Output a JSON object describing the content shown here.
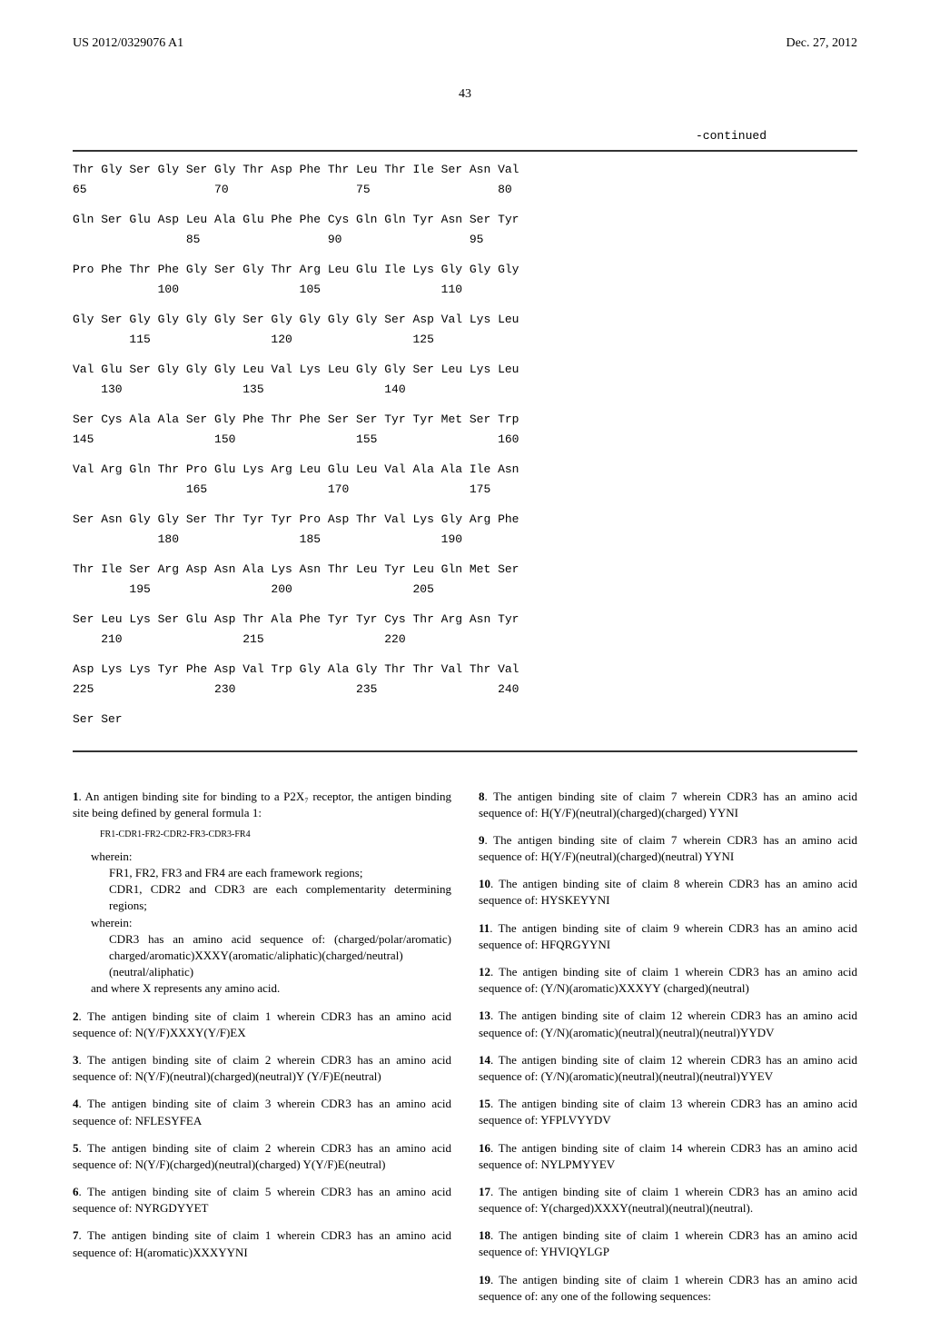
{
  "header": {
    "patent_number": "US 2012/0329076 A1",
    "date": "Dec. 27, 2012"
  },
  "page_number": "43",
  "continued_label": "-continued",
  "sequence": {
    "rows": [
      {
        "aa": "Thr Gly Ser Gly Ser Gly Thr Asp Phe Thr Leu Thr Ile Ser Asn Val",
        "nums": "65                  70                  75                  80"
      },
      {
        "aa": "Gln Ser Glu Asp Leu Ala Glu Phe Phe Cys Gln Gln Tyr Asn Ser Tyr",
        "nums": "                85                  90                  95"
      },
      {
        "aa": "Pro Phe Thr Phe Gly Ser Gly Thr Arg Leu Glu Ile Lys Gly Gly Gly",
        "nums": "            100                 105                 110"
      },
      {
        "aa": "Gly Ser Gly Gly Gly Gly Ser Gly Gly Gly Gly Ser Asp Val Lys Leu",
        "nums": "        115                 120                 125"
      },
      {
        "aa": "Val Glu Ser Gly Gly Gly Leu Val Lys Leu Gly Gly Ser Leu Lys Leu",
        "nums": "    130                 135                 140"
      },
      {
        "aa": "Ser Cys Ala Ala Ser Gly Phe Thr Phe Ser Ser Tyr Tyr Met Ser Trp",
        "nums": "145                 150                 155                 160"
      },
      {
        "aa": "Val Arg Gln Thr Pro Glu Lys Arg Leu Glu Leu Val Ala Ala Ile Asn",
        "nums": "                165                 170                 175"
      },
      {
        "aa": "Ser Asn Gly Gly Ser Thr Tyr Tyr Pro Asp Thr Val Lys Gly Arg Phe",
        "nums": "            180                 185                 190"
      },
      {
        "aa": "Thr Ile Ser Arg Asp Asn Ala Lys Asn Thr Leu Tyr Leu Gln Met Ser",
        "nums": "        195                 200                 205"
      },
      {
        "aa": "Ser Leu Lys Ser Glu Asp Thr Ala Phe Tyr Tyr Cys Thr Arg Asn Tyr",
        "nums": "    210                 215                 220"
      },
      {
        "aa": "Asp Lys Lys Tyr Phe Asp Val Trp Gly Ala Gly Thr Thr Val Thr Val",
        "nums": "225                 230                 235                 240"
      },
      {
        "aa": "Ser Ser",
        "nums": ""
      }
    ]
  },
  "claims": [
    {
      "num": "1",
      "paragraphs": [
        "An antigen binding site for binding to a P2X₇ receptor, the antigen binding site being defined by general formula 1:"
      ],
      "formula": "FR1-CDR1-FR2-CDR2-FR3-CDR3-FR4",
      "sub_paragraphs": [
        {
          "indent": 1,
          "text": "wherein:"
        },
        {
          "indent": 2,
          "text": "FR1, FR2, FR3 and FR4 are each framework regions;"
        },
        {
          "indent": 2,
          "text": "CDR1, CDR2 and CDR3 are each complementarity determining regions;"
        },
        {
          "indent": 1,
          "text": "wherein:"
        },
        {
          "indent": 2,
          "text": "CDR3 has an amino acid sequence of: (charged/polar/aromatic) charged/aromatic)XXXY(aromatic/aliphatic)(charged/neutral)(neutral/aliphatic)"
        },
        {
          "indent": 1,
          "text": "and where X represents any amino acid."
        }
      ]
    },
    {
      "num": "2",
      "text": "The antigen binding site of claim 1 wherein CDR3 has an amino acid sequence of: N(Y/F)XXXY(Y/F)EX"
    },
    {
      "num": "3",
      "text": "The antigen binding site of claim 2 wherein CDR3 has an amino acid sequence of: N(Y/F)(neutral)(charged)(neutral)Y (Y/F)E(neutral)"
    },
    {
      "num": "4",
      "text": "The antigen binding site of claim 3 wherein CDR3 has an amino acid sequence of: NFLESYFEA"
    },
    {
      "num": "5",
      "text": "The antigen binding site of claim 2 wherein CDR3 has an amino acid sequence of: N(Y/F)(charged)(neutral)(charged) Y(Y/F)E(neutral)"
    },
    {
      "num": "6",
      "text": "The antigen binding site of claim 5 wherein CDR3 has an amino acid sequence of: NYRGDYYET"
    },
    {
      "num": "7",
      "text": "The antigen binding site of claim 1 wherein CDR3 has an amino acid sequence of: H(aromatic)XXXYYNI"
    },
    {
      "num": "8",
      "text": "The antigen binding site of claim 7 wherein CDR3 has an amino acid sequence of: H(Y/F)(neutral)(charged)(charged) YYNI"
    },
    {
      "num": "9",
      "text": "The antigen binding site of claim 7 wherein CDR3 has an amino acid sequence of: H(Y/F)(neutral)(charged)(neutral) YYNI"
    },
    {
      "num": "10",
      "text": "The antigen binding site of claim 8 wherein CDR3 has an amino acid sequence of: HYSKEYYNI"
    },
    {
      "num": "11",
      "text": "The antigen binding site of claim 9 wherein CDR3 has an amino acid sequence of: HFQRGYYNI"
    },
    {
      "num": "12",
      "text": "The antigen binding site of claim 1 wherein CDR3 has an amino acid sequence of: (Y/N)(aromatic)XXXYY (charged)(neutral)"
    },
    {
      "num": "13",
      "text": "The antigen binding site of claim 12 wherein CDR3 has an amino acid sequence of: (Y/N)(aromatic)(neutral)(neutral)(neutral)YYDV"
    },
    {
      "num": "14",
      "text": "The antigen binding site of claim 12 wherein CDR3 has an amino acid sequence of: (Y/N)(aromatic)(neutral)(neutral)(neutral)YYEV"
    },
    {
      "num": "15",
      "text": "The antigen binding site of claim 13 wherein CDR3 has an amino acid sequence of: YFPLVYYDV"
    },
    {
      "num": "16",
      "text": "The antigen binding site of claim 14 wherein CDR3 has an amino acid sequence of: NYLPMYYEV"
    },
    {
      "num": "17",
      "text": "The antigen binding site of claim 1 wherein CDR3 has an amino acid sequence of: Y(charged)XXXY(neutral)(neutral)(neutral)."
    },
    {
      "num": "18",
      "text": "The antigen binding site of claim 1 wherein CDR3 has an amino acid sequence of: YHVIQYLGP"
    },
    {
      "num": "19",
      "text": "The antigen binding site of claim 1 wherein CDR3 has an amino acid sequence of: any one of the following sequences:"
    }
  ]
}
